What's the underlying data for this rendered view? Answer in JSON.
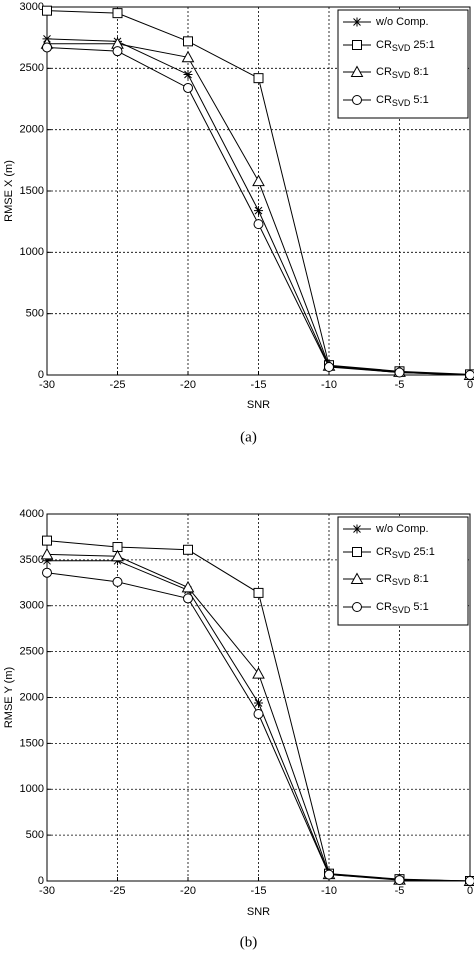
{
  "chart_data": [
    {
      "type": "line",
      "caption": "(a)",
      "xlabel": "SNR",
      "ylabel": "RMSE X (m)",
      "x": [
        -30,
        -25,
        -20,
        -15,
        -10,
        -5,
        0
      ],
      "xlim": [
        -30,
        0
      ],
      "xticks": [
        -30,
        -25,
        -20,
        -15,
        -10,
        -5,
        0
      ],
      "ylim": [
        0,
        3000
      ],
      "yticks": [
        0,
        500,
        1000,
        1500,
        2000,
        2500,
        3000
      ],
      "grid": true,
      "legend": "upper right",
      "series": [
        {
          "name": "w/o Comp.",
          "marker": "star",
          "color": "#000000",
          "values": [
            2740,
            2720,
            2450,
            1340,
            70,
            20,
            0
          ]
        },
        {
          "name": "CR",
          "subscript": "SVD",
          "suffix": "25:1",
          "marker": "square",
          "color": "#000000",
          "values": [
            2970,
            2950,
            2720,
            2420,
            80,
            30,
            5
          ]
        },
        {
          "name": "CR",
          "subscript": "SVD",
          "suffix": "8:1",
          "marker": "triangle",
          "color": "#000000",
          "values": [
            2700,
            2700,
            2590,
            1580,
            75,
            25,
            0
          ]
        },
        {
          "name": "CR",
          "subscript": "SVD",
          "suffix": "5:1",
          "marker": "circle",
          "color": "#000000",
          "values": [
            2670,
            2640,
            2340,
            1230,
            65,
            20,
            0
          ]
        }
      ]
    },
    {
      "type": "line",
      "caption": "(b)",
      "xlabel": "SNR",
      "ylabel": "RMSE Y (m)",
      "x": [
        -30,
        -25,
        -20,
        -15,
        -10,
        -5,
        0
      ],
      "xlim": [
        -30,
        0
      ],
      "xticks": [
        -30,
        -25,
        -20,
        -15,
        -10,
        -5,
        0
      ],
      "ylim": [
        0,
        4000
      ],
      "yticks": [
        0,
        500,
        1000,
        1500,
        2000,
        2500,
        3000,
        3500,
        4000
      ],
      "grid": true,
      "legend": "upper right",
      "series": [
        {
          "name": "w/o Comp.",
          "marker": "star",
          "color": "#000000",
          "values": [
            3490,
            3490,
            3170,
            1940,
            70,
            15,
            0
          ]
        },
        {
          "name": "CR",
          "subscript": "SVD",
          "suffix": "25:1",
          "marker": "square",
          "color": "#000000",
          "values": [
            3710,
            3640,
            3610,
            3140,
            80,
            20,
            0
          ]
        },
        {
          "name": "CR",
          "subscript": "SVD",
          "suffix": "8:1",
          "marker": "triangle",
          "color": "#000000",
          "values": [
            3560,
            3540,
            3200,
            2260,
            75,
            15,
            0
          ]
        },
        {
          "name": "CR",
          "subscript": "SVD",
          "suffix": "5:1",
          "marker": "circle",
          "color": "#000000",
          "values": [
            3360,
            3260,
            3080,
            1820,
            70,
            10,
            0
          ]
        }
      ]
    }
  ]
}
